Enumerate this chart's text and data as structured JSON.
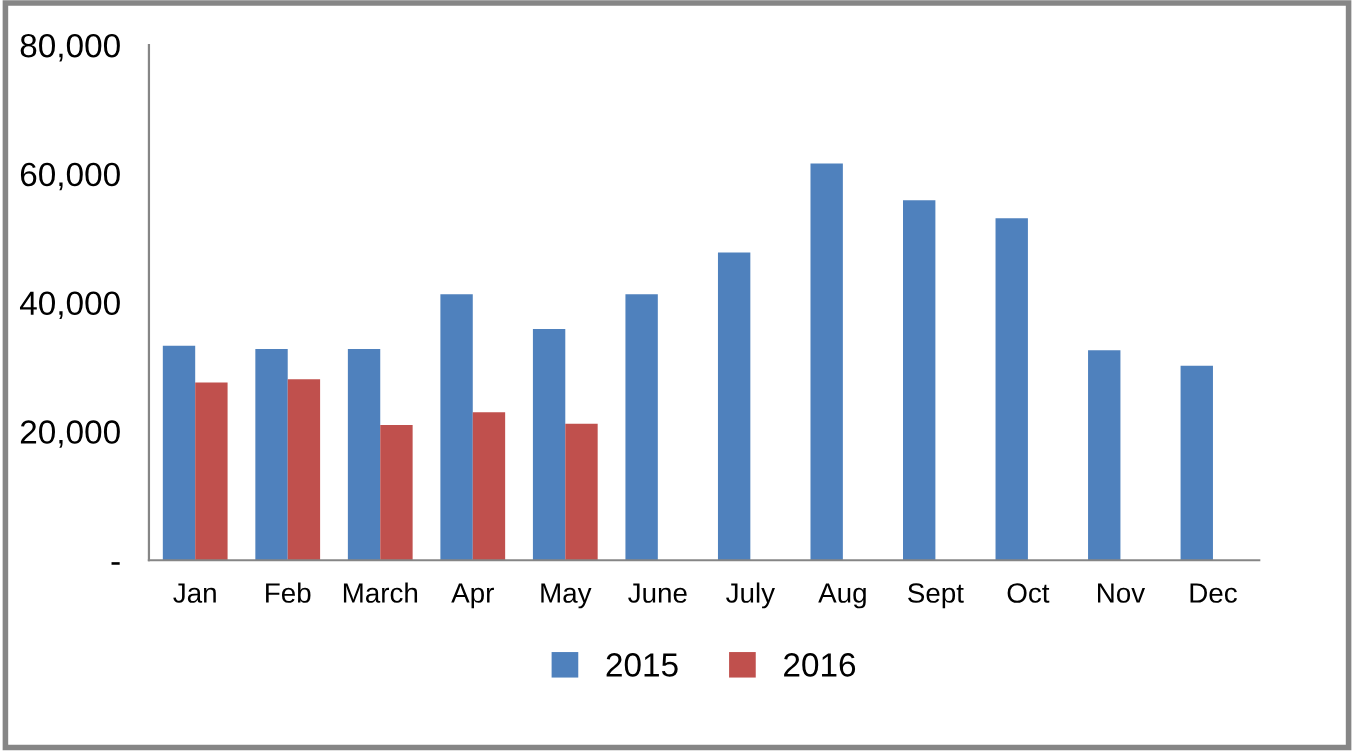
{
  "chart_data": {
    "type": "bar",
    "categories": [
      "Jan",
      "Feb",
      "March",
      "Apr",
      "May",
      "June",
      "July",
      "Aug",
      "Sept",
      "Oct",
      "Nov",
      "Dec"
    ],
    "series": [
      {
        "name": "2015",
        "color": "#4f81bd",
        "values": [
          33300,
          32800,
          32800,
          41300,
          35900,
          41300,
          47800,
          61600,
          55900,
          53100,
          32600,
          30200
        ]
      },
      {
        "name": "2016",
        "color": "#c0504d",
        "values": [
          27600,
          28100,
          21000,
          23000,
          21200,
          null,
          null,
          null,
          null,
          null,
          null,
          null
        ]
      }
    ],
    "ylim": [
      0,
      80000
    ],
    "yticks": [
      {
        "value": 0,
        "label": "-"
      },
      {
        "value": 20000,
        "label": "20,000"
      },
      {
        "value": 40000,
        "label": "40,000"
      },
      {
        "value": 60000,
        "label": "60,000"
      },
      {
        "value": 80000,
        "label": "80,000"
      }
    ],
    "grid": false,
    "legend": "bottom"
  }
}
